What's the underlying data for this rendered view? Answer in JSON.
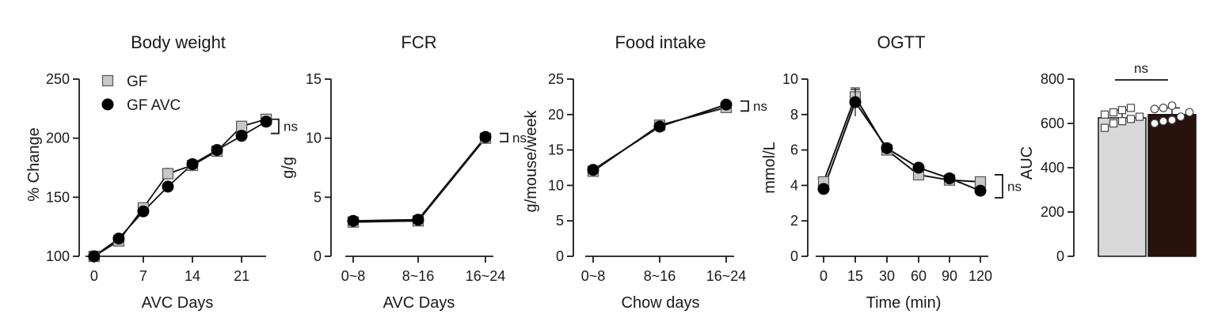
{
  "chart_data": [
    {
      "id": "body-weight",
      "type": "line",
      "title": "Body weight",
      "xlabel": "AVC Days",
      "ylabel": "% Change",
      "x_ticks": [
        0,
        7,
        14,
        21
      ],
      "y_ticks": [
        100,
        150,
        200,
        250
      ],
      "xlim": [
        -1,
        25.5
      ],
      "ylim": [
        100,
        250
      ],
      "series": [
        {
          "name": "GF",
          "marker": "square",
          "color": "#c8c8c8",
          "x": [
            0,
            3.5,
            7,
            10.5,
            14,
            17.5,
            21,
            24.5
          ],
          "y": [
            100,
            113,
            141,
            170,
            177,
            189,
            210,
            216
          ],
          "err": [
            2,
            2,
            3,
            5,
            3,
            3,
            3,
            3
          ]
        },
        {
          "name": "GF AVC",
          "marker": "circle",
          "color": "#000000",
          "x": [
            0,
            3.5,
            7,
            10.5,
            14,
            17.5,
            21,
            24.5
          ],
          "y": [
            100,
            115,
            138,
            159,
            178,
            190,
            202,
            214
          ],
          "err": [
            2,
            2,
            3,
            5,
            3,
            3,
            3,
            3
          ]
        }
      ],
      "legend": {
        "position": "top-left",
        "items": [
          "GF",
          "GF AVC"
        ]
      },
      "annotation": "ns"
    },
    {
      "id": "fcr",
      "type": "line",
      "title": "FCR",
      "xlabel": "AVC Days",
      "ylabel": "g/g",
      "categories": [
        "0~8",
        "8~16",
        "16~24"
      ],
      "y_ticks": [
        0,
        5,
        10,
        15
      ],
      "ylim": [
        0,
        15
      ],
      "series": [
        {
          "name": "GF",
          "marker": "square",
          "color": "#c8c8c8",
          "values": [
            2.9,
            3.0,
            10.0
          ]
        },
        {
          "name": "GF AVC",
          "marker": "circle",
          "color": "#000000",
          "values": [
            3.0,
            3.1,
            10.1
          ]
        }
      ],
      "annotation": "ns"
    },
    {
      "id": "food-intake",
      "type": "line",
      "title": "Food intake",
      "xlabel": "Chow days",
      "ylabel": "g/mouse/week",
      "categories": [
        "0~8",
        "8~16",
        "16~24"
      ],
      "y_ticks": [
        0,
        5,
        10,
        15,
        20,
        25
      ],
      "ylim": [
        0,
        25
      ],
      "series": [
        {
          "name": "GF",
          "marker": "square",
          "color": "#c8c8c8",
          "values": [
            12.0,
            18.5,
            21.0
          ]
        },
        {
          "name": "GF AVC",
          "marker": "circle",
          "color": "#000000",
          "values": [
            12.2,
            18.3,
            21.4
          ]
        }
      ],
      "annotation": "ns"
    },
    {
      "id": "ogtt",
      "type": "line",
      "title": "OGTT",
      "xlabel": "Time (min)",
      "ylabel": "mmol/L",
      "categories": [
        "0",
        "15",
        "30",
        "60",
        "90",
        "120"
      ],
      "y_ticks": [
        0,
        2,
        4,
        6,
        8,
        10
      ],
      "ylim": [
        0,
        10
      ],
      "series": [
        {
          "name": "GF",
          "marker": "square",
          "color": "#c8c8c8",
          "values": [
            4.2,
            9.0,
            6.0,
            4.6,
            4.3,
            4.2
          ],
          "err": [
            0.2,
            0.4,
            0.2,
            0.2,
            0.2,
            0.2
          ]
        },
        {
          "name": "GF AVC",
          "marker": "circle",
          "color": "#000000",
          "values": [
            3.8,
            8.7,
            6.1,
            5.0,
            4.4,
            3.7
          ],
          "err": [
            0.2,
            0.8,
            0.2,
            0.2,
            0.2,
            0.2
          ]
        }
      ],
      "annotation": "ns"
    },
    {
      "id": "auc",
      "type": "bar",
      "ylabel": "AUC",
      "y_ticks": [
        0,
        200,
        400,
        600,
        800
      ],
      "ylim": [
        0,
        800
      ],
      "series": [
        {
          "name": "GF",
          "value": 625,
          "err": 35,
          "color": "#d9d9d9",
          "marker": "square",
          "points": [
            580,
            600,
            610,
            620,
            630,
            640,
            650,
            660,
            670
          ]
        },
        {
          "name": "GF AVC",
          "value": 640,
          "err": 30,
          "color": "#2a120c",
          "marker": "circle",
          "points": [
            600,
            610,
            615,
            630,
            650,
            665,
            670,
            680
          ]
        }
      ],
      "annotation": "ns"
    }
  ]
}
